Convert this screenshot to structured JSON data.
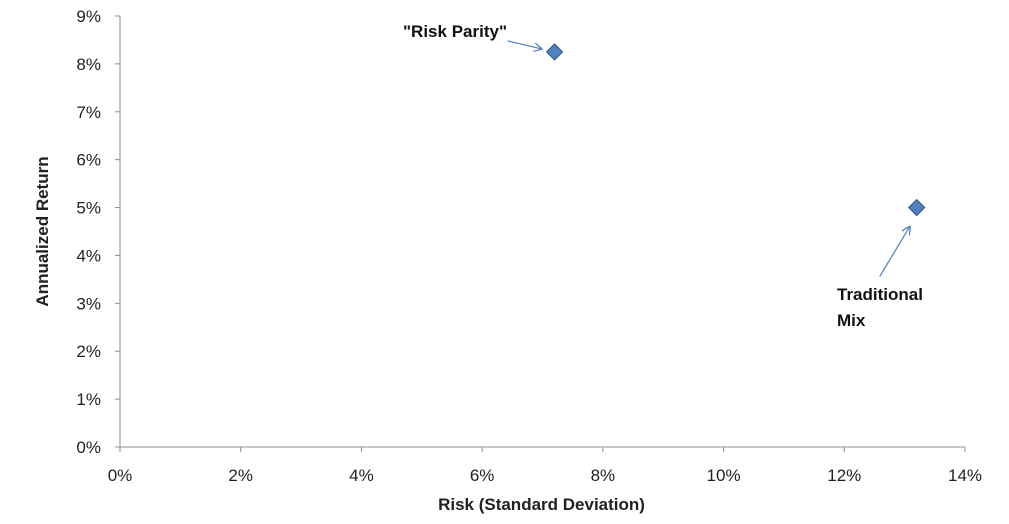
{
  "chart_data": {
    "type": "scatter",
    "title": "",
    "xlabel": "Risk (Standard Deviation)",
    "ylabel": "Annualized Return",
    "xlim": [
      0,
      14
    ],
    "ylim": [
      0,
      9
    ],
    "x_ticks": [
      "0%",
      "2%",
      "4%",
      "6%",
      "8%",
      "10%",
      "12%",
      "14%"
    ],
    "y_ticks": [
      "0%",
      "1%",
      "2%",
      "3%",
      "4%",
      "5%",
      "6%",
      "7%",
      "8%",
      "9%"
    ],
    "grid": false,
    "legend": "none",
    "marker_color": "#4F81BD",
    "marker_edge_color": "#2F4F7F",
    "arrow_color": "#4F81BD",
    "axis_color": "#8C8C8C",
    "points": [
      {
        "x": 7.2,
        "y": 8.25,
        "label": [
          "\"Risk Parity\""
        ]
      },
      {
        "x": 13.2,
        "y": 5.0,
        "label": [
          "Traditional",
          "Mix"
        ]
      }
    ]
  }
}
